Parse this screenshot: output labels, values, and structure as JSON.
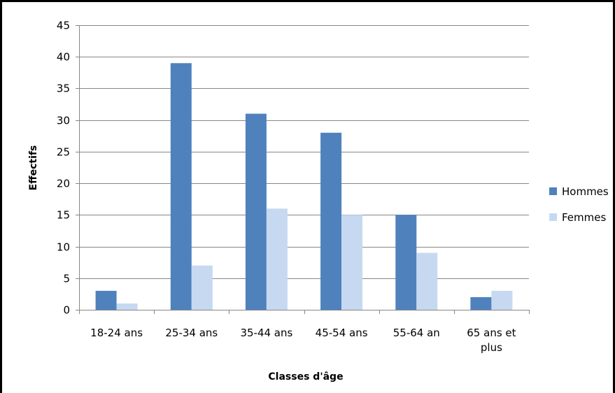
{
  "chart_data": {
    "type": "bar",
    "title": "",
    "xlabel": "Classes d'âge",
    "ylabel": "Effectifs",
    "categories": [
      [
        "18-24 ans"
      ],
      [
        "25-34 ans"
      ],
      [
        "35-44 ans"
      ],
      [
        "45-54 ans"
      ],
      [
        "55-64 an"
      ],
      [
        "65 ans et",
        "plus"
      ]
    ],
    "series": [
      {
        "name": "Hommes",
        "color": "#4f81bd",
        "values": [
          3,
          39,
          31,
          28,
          15,
          2
        ]
      },
      {
        "name": "Femmes",
        "color": "#c6d9f1",
        "values": [
          1,
          7,
          16,
          15,
          9,
          3
        ]
      }
    ],
    "ylim": [
      0,
      45
    ],
    "yticks": [
      0,
      5,
      10,
      15,
      20,
      25,
      30,
      35,
      40,
      45
    ],
    "grid": true,
    "legend_position": "right"
  }
}
